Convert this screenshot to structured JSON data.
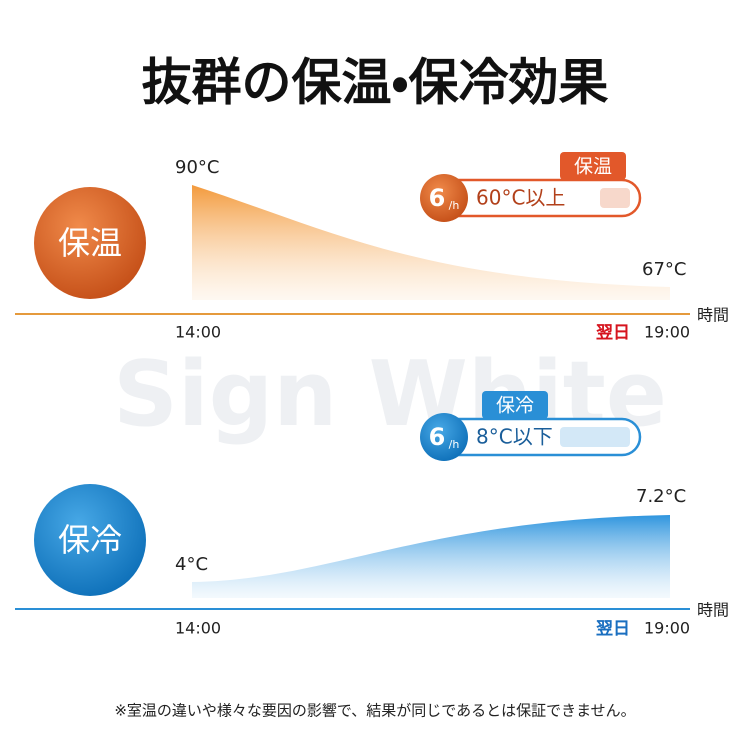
{
  "title": "抜群の保温・保冷効果",
  "watermark": "Sign White",
  "panels": [
    {
      "badge": "保温",
      "start_temp": "90°C",
      "end_temp": "67°C",
      "start_time": "14:00",
      "next_day": "翌日",
      "end_time": "19:00",
      "axis_label": "時間",
      "callout": {
        "tag": "保温",
        "hours": "6",
        "per": "/h",
        "text": "60°C以上"
      }
    },
    {
      "badge": "保冷",
      "start_temp": "4°C",
      "end_temp": "7.2°C",
      "start_time": "14:00",
      "next_day": "翌日",
      "end_time": "19:00",
      "axis_label": "時間",
      "callout": {
        "tag": "保冷",
        "hours": "6",
        "per": "/h",
        "text": "8°C以下"
      }
    }
  ],
  "footnote": "※室温の違いや様々な要因の影響で、結果が同じであるとは保証できません。"
}
